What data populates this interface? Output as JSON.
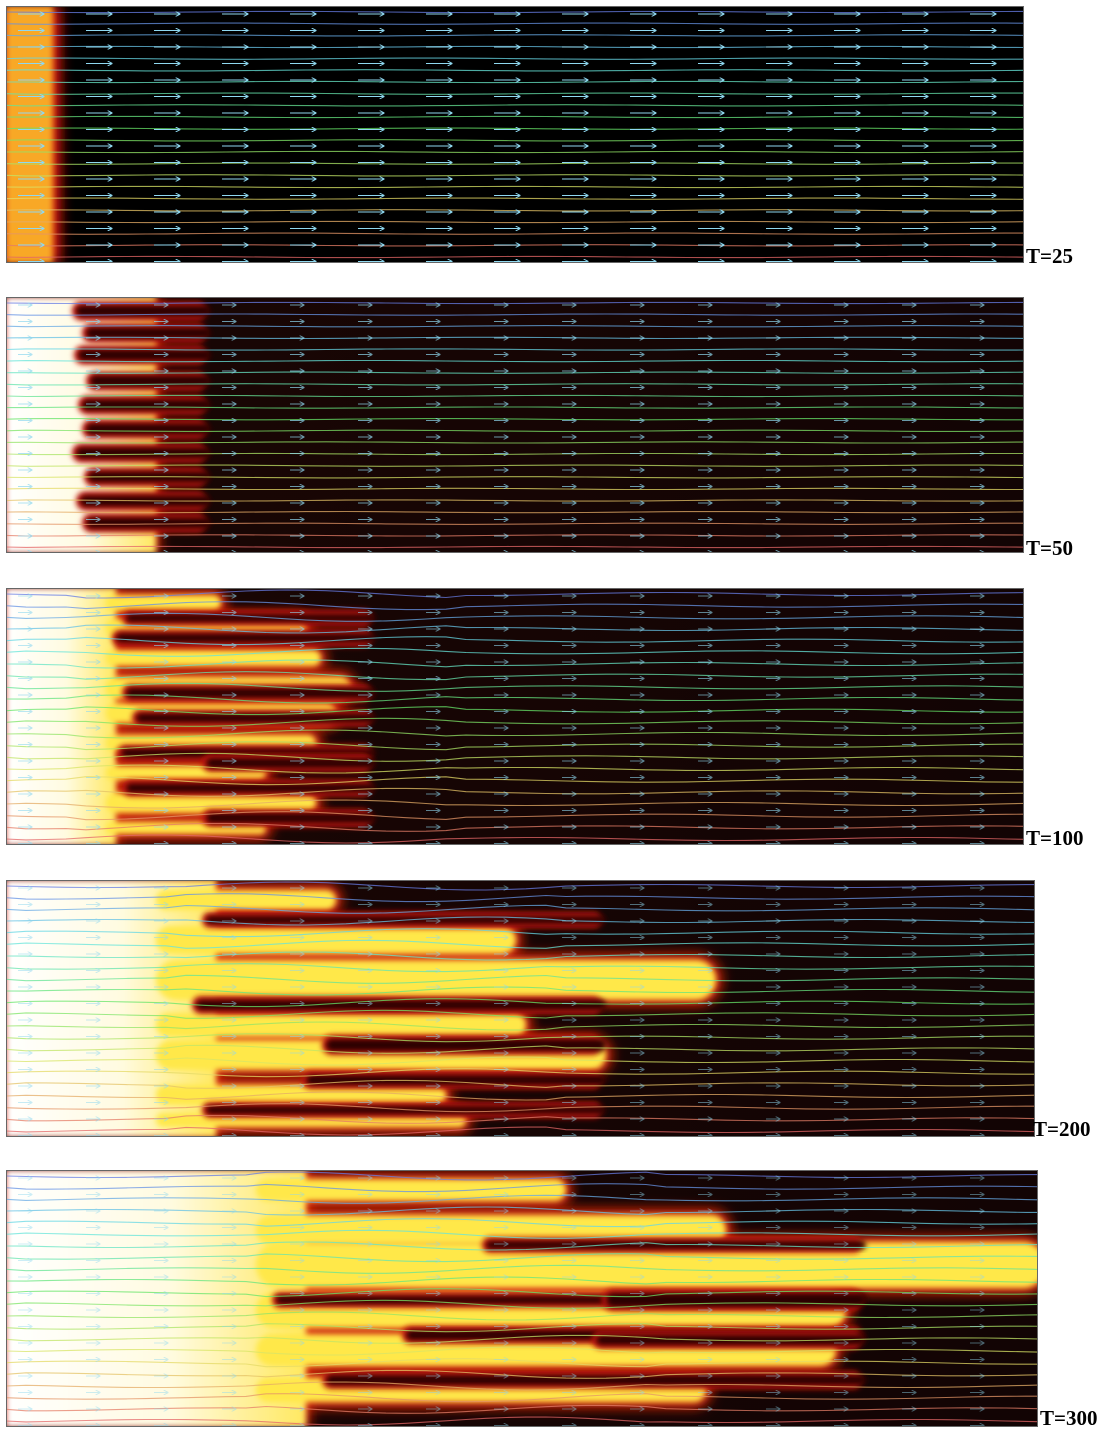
{
  "panels": [
    {
      "label": "T=25"
    },
    {
      "label": "T=50"
    },
    {
      "label": "T=100"
    },
    {
      "label": "T=200"
    },
    {
      "label": "T=300"
    }
  ]
}
